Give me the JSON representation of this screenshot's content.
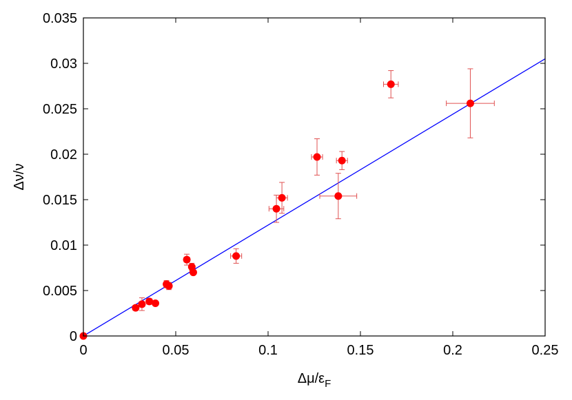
{
  "chart_data": {
    "type": "scatter",
    "title": "",
    "xlabel": "Δμ/ε",
    "xlabel_subscript": "F",
    "ylabel": "Δν/ν",
    "xlim": [
      0,
      0.25
    ],
    "ylim": [
      0,
      0.035
    ],
    "xticks": [
      "0",
      "0.05",
      "0.1",
      "0.15",
      "0.2",
      "0.25"
    ],
    "xtick_values": [
      0,
      0.05,
      0.1,
      0.15,
      0.2,
      0.25
    ],
    "yticks": [
      "0",
      "0.005",
      "0.01",
      "0.015",
      "0.02",
      "0.025",
      "0.03",
      "0.035"
    ],
    "ytick_values": [
      0,
      0.005,
      0.01,
      0.015,
      0.02,
      0.025,
      0.03,
      0.035
    ],
    "grid": false,
    "legend": "none",
    "colors": {
      "points": "#ff0000",
      "errorbars": "#e05050",
      "fit_line": "#0000ff",
      "axes": "#000000"
    },
    "points": [
      {
        "x": 0.0,
        "y": 0.0,
        "xerr": 0.0,
        "yerr": 0.0
      },
      {
        "x": 0.0283,
        "y": 0.0031,
        "xerr": 0.0015,
        "yerr": 0.0002
      },
      {
        "x": 0.0317,
        "y": 0.0035,
        "xerr": 0.0015,
        "yerr": 0.0007
      },
      {
        "x": 0.0357,
        "y": 0.0038,
        "xerr": 0.0015,
        "yerr": 0.0003
      },
      {
        "x": 0.039,
        "y": 0.0036,
        "xerr": 0.0012,
        "yerr": 0.0002
      },
      {
        "x": 0.045,
        "y": 0.0057,
        "xerr": 0.0015,
        "yerr": 0.0004
      },
      {
        "x": 0.0463,
        "y": 0.0055,
        "xerr": 0.0015,
        "yerr": 0.0004
      },
      {
        "x": 0.056,
        "y": 0.0084,
        "xerr": 0.0015,
        "yerr": 0.0006
      },
      {
        "x": 0.0587,
        "y": 0.0076,
        "xerr": 0.001,
        "yerr": 0.0004
      },
      {
        "x": 0.0595,
        "y": 0.007,
        "xerr": 0.0008,
        "yerr": 0.0002
      },
      {
        "x": 0.0827,
        "y": 0.0088,
        "xerr": 0.003,
        "yerr": 0.0008
      },
      {
        "x": 0.1045,
        "y": 0.014,
        "xerr": 0.004,
        "yerr": 0.0015
      },
      {
        "x": 0.1075,
        "y": 0.0152,
        "xerr": 0.003,
        "yerr": 0.0017
      },
      {
        "x": 0.1265,
        "y": 0.0197,
        "xerr": 0.003,
        "yerr": 0.002
      },
      {
        "x": 0.138,
        "y": 0.0154,
        "xerr": 0.01,
        "yerr": 0.0025
      },
      {
        "x": 0.14,
        "y": 0.0193,
        "xerr": 0.003,
        "yerr": 0.001
      },
      {
        "x": 0.1665,
        "y": 0.0277,
        "xerr": 0.004,
        "yerr": 0.0015
      },
      {
        "x": 0.2095,
        "y": 0.0256,
        "xerr": 0.013,
        "yerr": 0.0038
      }
    ],
    "fit_line": {
      "x": [
        0,
        0.25
      ],
      "y": [
        0,
        0.0305
      ]
    }
  }
}
